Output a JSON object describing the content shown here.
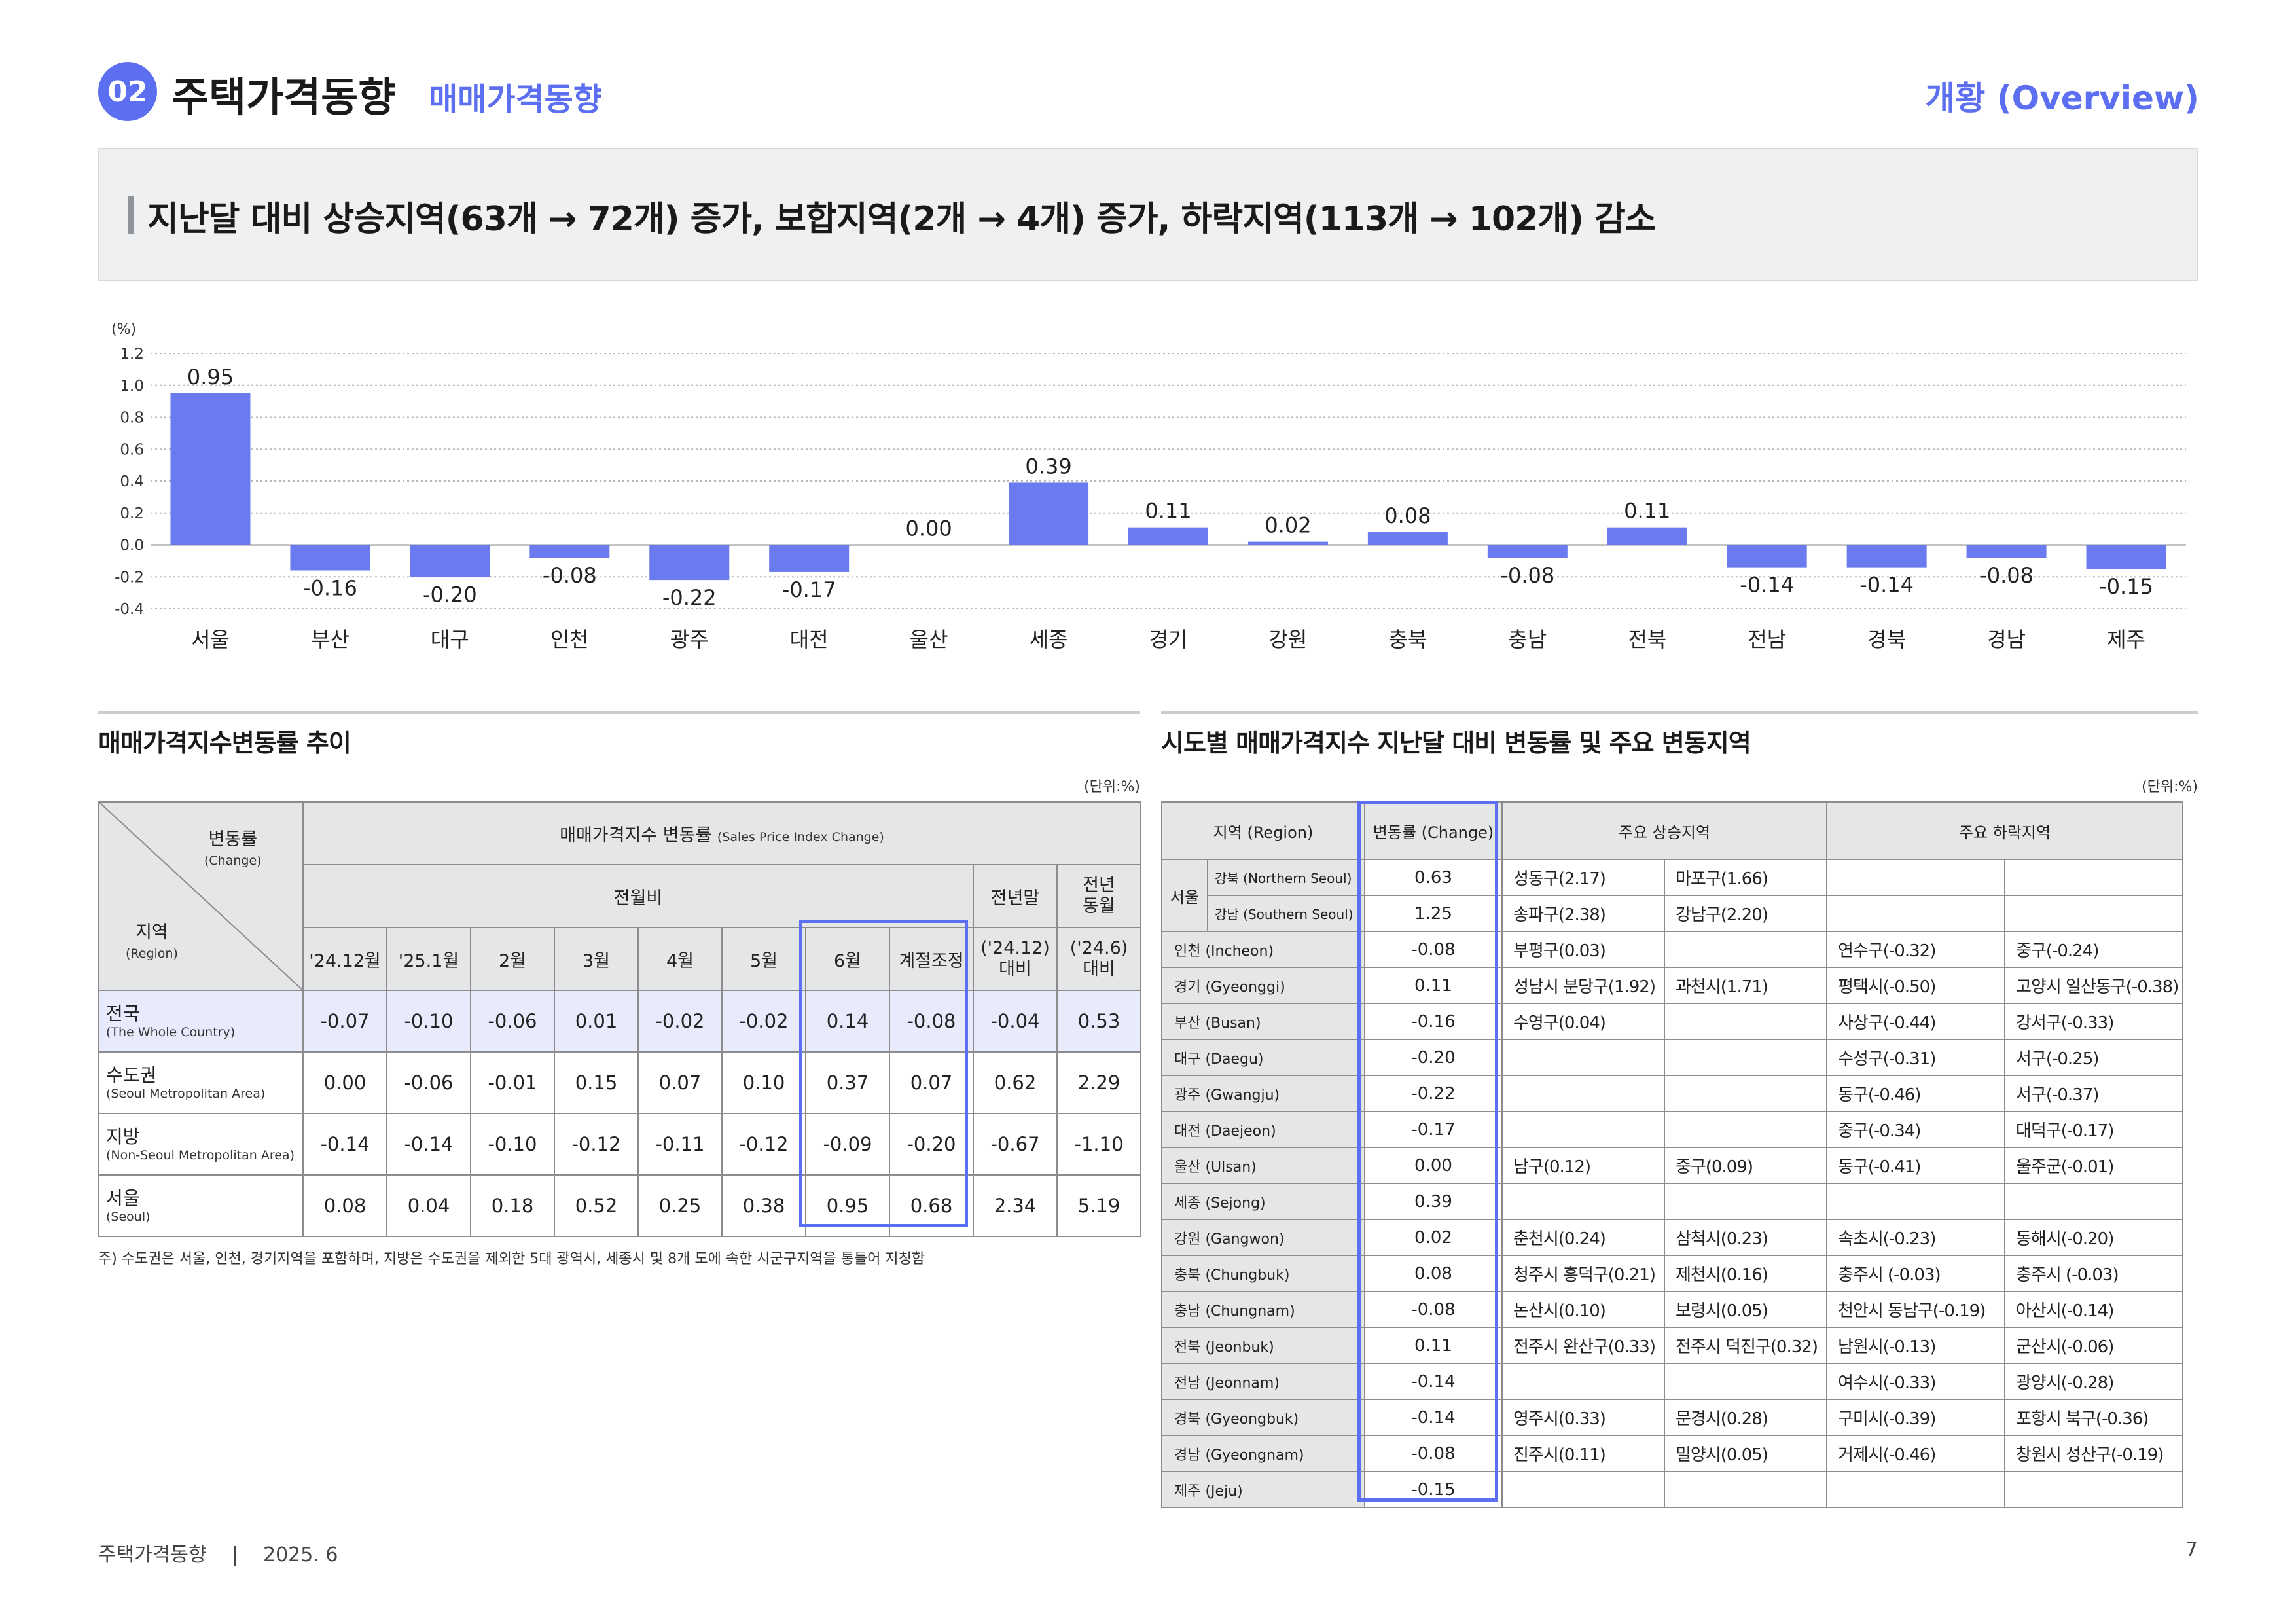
{
  "header": {
    "section_number": "02",
    "title": "주택가격동향",
    "subtitle": "매매가격동향",
    "overview": "개황 (Overview)"
  },
  "headline": "지난달 대비 상승지역(63개 → 72개) 증가, 보합지역(2개 → 4개) 증가, 하락지역(113개 → 102개) 감소",
  "chart_data": {
    "type": "bar",
    "ylabel": "(%)",
    "ylim": [
      -0.4,
      1.2
    ],
    "yticks": [
      -0.4,
      -0.2,
      0.0,
      0.2,
      0.4,
      0.6,
      0.8,
      1.0,
      1.2
    ],
    "ytick_labels": [
      "-0.4",
      "-0.2",
      "0.0",
      "0.2",
      "0.4",
      "0.6",
      "0.8",
      "1.0",
      "1.2"
    ],
    "grid": true,
    "categories": [
      "서울",
      "부산",
      "대구",
      "인천",
      "광주",
      "대전",
      "울산",
      "세종",
      "경기",
      "강원",
      "충북",
      "충남",
      "전북",
      "전남",
      "경북",
      "경남",
      "제주"
    ],
    "values": [
      0.95,
      -0.16,
      -0.2,
      -0.08,
      -0.22,
      -0.17,
      0.0,
      0.39,
      0.11,
      0.02,
      0.08,
      -0.08,
      0.11,
      -0.14,
      -0.14,
      -0.08,
      -0.15
    ],
    "labels": [
      "0.95",
      "-0.16",
      "-0.20",
      "-0.08",
      "-0.22",
      "-0.17",
      "0.00",
      "0.39",
      "0.11",
      "0.02",
      "0.08",
      "-0.08",
      "0.11",
      "-0.14",
      "-0.14",
      "-0.08",
      "-0.15"
    ],
    "bar_color": "#6a7bf0"
  },
  "left_section": {
    "title": "매매가격지수변동률 추이",
    "unit": "(단위:%)",
    "header": {
      "change": "변동률",
      "change_en": "(Change)",
      "region": "지역",
      "region_en": "(Region)",
      "main": "매매가격지수 변동률",
      "main_en": "(Sales Price Index Change)",
      "monthly": "전월비",
      "year_end": "전년말",
      "year_end_sub": "('24.12)",
      "year_end_sub2": "대비",
      "same_month": "전년",
      "same_month2": "동월",
      "same_month_sub": "('24.6)",
      "same_month_sub2": "대비",
      "months": [
        "'24.12월",
        "'25.1월",
        "2월",
        "3월",
        "4월",
        "5월",
        "6월",
        "계절조정"
      ]
    },
    "rows": [
      {
        "name": "전국",
        "name_en": "(The Whole Country)",
        "values": [
          "-0.07",
          "-0.10",
          "-0.06",
          "0.01",
          "-0.02",
          "-0.02",
          "0.14",
          "-0.08",
          "-0.04",
          "0.53"
        ]
      },
      {
        "name": "수도권",
        "name_en": "(Seoul Metropolitan Area)",
        "values": [
          "0.00",
          "-0.06",
          "-0.01",
          "0.15",
          "0.07",
          "0.10",
          "0.37",
          "0.07",
          "0.62",
          "2.29"
        ]
      },
      {
        "name": "지방",
        "name_en": "(Non-Seoul Metropolitan Area)",
        "values": [
          "-0.14",
          "-0.14",
          "-0.10",
          "-0.12",
          "-0.11",
          "-0.12",
          "-0.09",
          "-0.20",
          "-0.67",
          "-1.10"
        ]
      },
      {
        "name": "서울",
        "name_en": "(Seoul)",
        "values": [
          "0.08",
          "0.04",
          "0.18",
          "0.52",
          "0.25",
          "0.38",
          "0.95",
          "0.68",
          "2.34",
          "5.19"
        ]
      }
    ],
    "note": "주) 수도권은 서울, 인천, 경기지역을 포함하며, 지방은 수도권을 제외한 5대 광역시, 세종시 및 8개 도에 속한 시군구지역을 통틀어 지칭함"
  },
  "right_section": {
    "title": "시도별 매매가격지수 지난달 대비 변동률 및 주요 변동지역",
    "unit": "(단위:%)",
    "header": {
      "region": "지역 (Region)",
      "change": "변동률 (Change)",
      "up": "주요 상승지역",
      "down": "주요 하락지역"
    },
    "seoul": {
      "name": "서울",
      "rows": [
        {
          "sub": "강북 (Northern Seoul)",
          "change": "0.63",
          "up": [
            "성동구(2.17)",
            "마포구(1.66)"
          ],
          "down": [
            "",
            ""
          ]
        },
        {
          "sub": "강남 (Southern Seoul)",
          "change": "1.25",
          "up": [
            "송파구(2.38)",
            "강남구(2.20)"
          ],
          "down": [
            "",
            ""
          ]
        }
      ]
    },
    "rows": [
      {
        "region": "인천 (Incheon)",
        "change": "-0.08",
        "up": [
          "부평구(0.03)",
          ""
        ],
        "down": [
          "연수구(-0.32)",
          "중구(-0.24)"
        ]
      },
      {
        "region": "경기 (Gyeonggi)",
        "change": "0.11",
        "up": [
          "성남시 분당구(1.92)",
          "과천시(1.71)"
        ],
        "down": [
          "평택시(-0.50)",
          "고양시 일산동구(-0.38)"
        ]
      },
      {
        "region": "부산 (Busan)",
        "change": "-0.16",
        "up": [
          "수영구(0.04)",
          ""
        ],
        "down": [
          "사상구(-0.44)",
          "강서구(-0.33)"
        ]
      },
      {
        "region": "대구 (Daegu)",
        "change": "-0.20",
        "up": [
          "",
          ""
        ],
        "down": [
          "수성구(-0.31)",
          "서구(-0.25)"
        ]
      },
      {
        "region": "광주 (Gwangju)",
        "change": "-0.22",
        "up": [
          "",
          ""
        ],
        "down": [
          "동구(-0.46)",
          "서구(-0.37)"
        ]
      },
      {
        "region": "대전 (Daejeon)",
        "change": "-0.17",
        "up": [
          "",
          ""
        ],
        "down": [
          "중구(-0.34)",
          "대덕구(-0.17)"
        ]
      },
      {
        "region": "울산 (Ulsan)",
        "change": "0.00",
        "up": [
          "남구(0.12)",
          "중구(0.09)"
        ],
        "down": [
          "동구(-0.41)",
          "울주군(-0.01)"
        ]
      },
      {
        "region": "세종 (Sejong)",
        "change": "0.39",
        "up": [
          "",
          ""
        ],
        "down": [
          "",
          ""
        ]
      },
      {
        "region": "강원 (Gangwon)",
        "change": "0.02",
        "up": [
          "춘천시(0.24)",
          "삼척시(0.23)"
        ],
        "down": [
          "속초시(-0.23)",
          "동해시(-0.20)"
        ]
      },
      {
        "region": "충북 (Chungbuk)",
        "change": "0.08",
        "up": [
          "청주시 흥덕구(0.21)",
          "제천시(0.16)"
        ],
        "down": [
          "충주시 (-0.03)",
          "충주시 (-0.03)"
        ]
      },
      {
        "region": "충남 (Chungnam)",
        "change": "-0.08",
        "up": [
          "논산시(0.10)",
          "보령시(0.05)"
        ],
        "down": [
          "천안시 동남구(-0.19)",
          "아산시(-0.14)"
        ]
      },
      {
        "region": "전북 (Jeonbuk)",
        "change": "0.11",
        "up": [
          "전주시 완산구(0.33)",
          "전주시 덕진구(0.32)"
        ],
        "down": [
          "남원시(-0.13)",
          "군산시(-0.06)"
        ]
      },
      {
        "region": "전남 (Jeonnam)",
        "change": "-0.14",
        "up": [
          "",
          ""
        ],
        "down": [
          "여수시(-0.33)",
          "광양시(-0.28)"
        ]
      },
      {
        "region": "경북 (Gyeongbuk)",
        "change": "-0.14",
        "up": [
          "영주시(0.33)",
          "문경시(0.28)"
        ],
        "down": [
          "구미시(-0.39)",
          "포항시 북구(-0.36)"
        ]
      },
      {
        "region": "경남 (Gyeongnam)",
        "change": "-0.08",
        "up": [
          "진주시(0.11)",
          "밀양시(0.05)"
        ],
        "down": [
          "거제시(-0.46)",
          "창원시 성산구(-0.19)"
        ]
      },
      {
        "region": "제주 (Jeju)",
        "change": "-0.15",
        "up": [
          "",
          ""
        ],
        "down": [
          "",
          ""
        ]
      }
    ]
  },
  "footer": {
    "left": "주택가격동향    |    2025. 6",
    "page": "7"
  }
}
